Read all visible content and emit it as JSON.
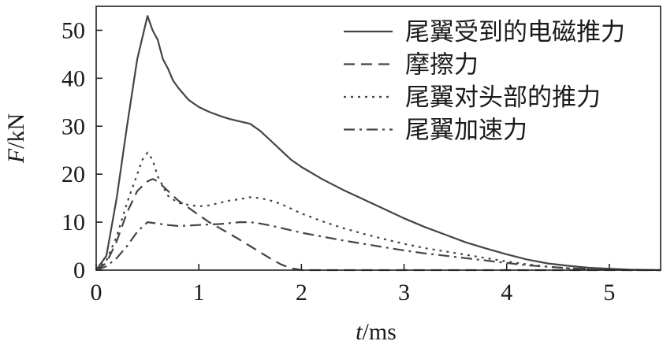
{
  "chart_data": {
    "type": "line",
    "xlabel_italic": "t",
    "xlabel_rest": "/ms",
    "ylabel_italic": "F",
    "ylabel_rest": "/kN",
    "xlim": [
      0,
      5.5
    ],
    "ylim": [
      0,
      55
    ],
    "xticks": [
      0,
      1,
      2,
      3,
      4,
      5
    ],
    "yticks": [
      0,
      10,
      20,
      30,
      40,
      50
    ],
    "grid": false,
    "legend_position": "top-right",
    "series": [
      {
        "name": "尾翼受到的电磁推力",
        "style": "solid",
        "color": "#444444",
        "x": [
          0,
          0.1,
          0.2,
          0.3,
          0.4,
          0.5,
          0.55,
          0.6,
          0.65,
          0.7,
          0.75,
          0.8,
          0.9,
          1.0,
          1.1,
          1.2,
          1.3,
          1.4,
          1.5,
          1.6,
          1.7,
          1.8,
          1.9,
          2.0,
          2.2,
          2.4,
          2.6,
          2.8,
          3.0,
          3.2,
          3.4,
          3.6,
          3.8,
          4.0,
          4.2,
          4.4,
          4.6,
          4.8,
          5.0,
          5.2,
          5.5
        ],
        "y": [
          0,
          3,
          15,
          30,
          44,
          53,
          50,
          48,
          44,
          42,
          39.5,
          38,
          35.5,
          34,
          33,
          32.2,
          31.5,
          31,
          30.5,
          29,
          27,
          25,
          23,
          21.5,
          19,
          16.8,
          14.8,
          12.8,
          10.8,
          9.0,
          7.4,
          5.8,
          4.5,
          3.3,
          2.2,
          1.4,
          0.9,
          0.5,
          0.3,
          0.1,
          0
        ]
      },
      {
        "name": "摩擦力",
        "style": "dashed",
        "color": "#444444",
        "x": [
          0,
          0.1,
          0.2,
          0.3,
          0.4,
          0.5,
          0.55,
          0.6,
          0.7,
          0.8,
          0.9,
          1.0,
          1.1,
          1.2,
          1.3,
          1.4,
          1.5,
          1.6,
          1.7,
          1.8,
          1.9,
          2.0,
          2.5,
          3.0,
          3.5,
          4.0,
          4.5,
          5.0,
          5.5
        ],
        "y": [
          0,
          1.5,
          6,
          12,
          16.5,
          18.5,
          19,
          18.5,
          16.5,
          14.5,
          13,
          11.5,
          10,
          8.8,
          7.6,
          6.3,
          5,
          3.7,
          2.4,
          1.2,
          0.4,
          0,
          0,
          0,
          0,
          0,
          0,
          0,
          0
        ]
      },
      {
        "name": "尾翼对头部的推力",
        "style": "dotted",
        "color": "#444444",
        "x": [
          0,
          0.1,
          0.2,
          0.3,
          0.4,
          0.45,
          0.5,
          0.55,
          0.6,
          0.7,
          0.8,
          0.9,
          1.0,
          1.1,
          1.2,
          1.3,
          1.4,
          1.5,
          1.6,
          1.7,
          1.8,
          1.9,
          2.0,
          2.2,
          2.4,
          2.6,
          2.8,
          3.0,
          3.2,
          3.4,
          3.6,
          3.8,
          4.0,
          4.2,
          4.4,
          4.6,
          4.8,
          5.0,
          5.2,
          5.5
        ],
        "y": [
          0,
          2,
          7,
          14,
          20,
          23,
          24.5,
          23,
          19.5,
          15.5,
          14,
          13.6,
          13.3,
          13.5,
          14,
          14.5,
          14.8,
          15.2,
          15,
          14.5,
          13.8,
          12.8,
          11.8,
          10.2,
          8.8,
          7.6,
          6.5,
          5.5,
          4.6,
          3.9,
          3.2,
          2.5,
          1.8,
          1.2,
          0.7,
          0.4,
          0.2,
          0.1,
          0,
          0
        ]
      },
      {
        "name": "尾翼加速力",
        "style": "dashdot",
        "color": "#444444",
        "x": [
          0,
          0.1,
          0.2,
          0.3,
          0.4,
          0.5,
          0.6,
          0.7,
          0.8,
          0.9,
          1.0,
          1.1,
          1.2,
          1.3,
          1.4,
          1.5,
          1.6,
          1.7,
          1.8,
          1.9,
          2.0,
          2.2,
          2.4,
          2.6,
          2.8,
          3.0,
          3.2,
          3.4,
          3.6,
          3.8,
          4.0,
          4.2,
          4.4,
          4.6,
          4.8,
          5.0,
          5.2,
          5.5
        ],
        "y": [
          0,
          0.8,
          2.5,
          5,
          8,
          10,
          9.7,
          9.4,
          9.2,
          9.3,
          9.4,
          9.5,
          9.6,
          9.8,
          10,
          10,
          9.7,
          9.3,
          8.8,
          8.3,
          7.8,
          7.0,
          6.2,
          5.5,
          4.8,
          4.1,
          3.5,
          3.0,
          2.5,
          2.0,
          1.5,
          1.0,
          0.7,
          0.4,
          0.2,
          0.1,
          0.05,
          0
        ]
      }
    ]
  }
}
